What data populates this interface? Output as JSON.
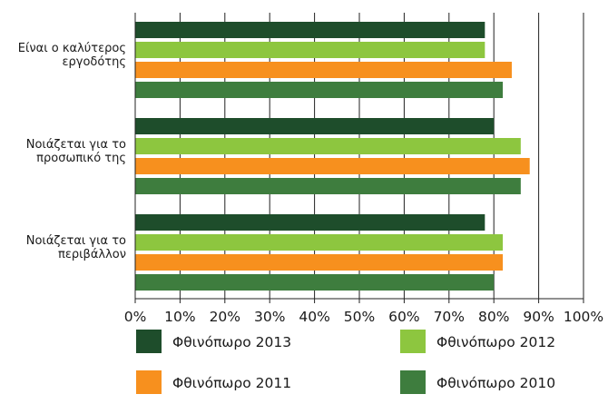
{
  "chart_data": {
    "type": "bar",
    "orientation": "horizontal",
    "categories": [
      [
        "Είναι ο καλύτερος",
        "εργοδότης"
      ],
      [
        "Νοιάζεται για το",
        "προσωπικό της"
      ],
      [
        "Νοιάζεται για το",
        "περιβάλλον"
      ]
    ],
    "series": [
      {
        "name": "Φθινόπωρο 2013",
        "color": "#1e4d2b",
        "values": [
          78,
          80,
          78
        ]
      },
      {
        "name": "Φθινόπωρο 2012",
        "color": "#8dc63f",
        "values": [
          78,
          86,
          82
        ]
      },
      {
        "name": "Φθινόπωρο 2011",
        "color": "#f7901e",
        "values": [
          84,
          88,
          82
        ]
      },
      {
        "name": "Φθινόπωρο 2010",
        "color": "#3e7d3e",
        "values": [
          82,
          86,
          80
        ]
      }
    ],
    "xlim": [
      0,
      100
    ],
    "x_ticks": [
      0,
      10,
      20,
      30,
      40,
      50,
      60,
      70,
      80,
      90,
      100
    ],
    "tick_format": "{v}%",
    "grid": true,
    "legend_position": "bottom",
    "title": "",
    "xlabel": "",
    "ylabel": ""
  }
}
